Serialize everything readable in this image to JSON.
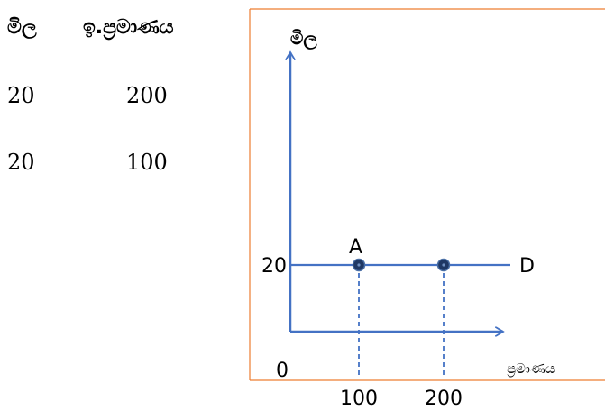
{
  "table": {
    "headers": [
      "මිල",
      "ඉ.ප්‍රමාණය"
    ],
    "rows": [
      [
        "20",
        "200"
      ],
      [
        "20",
        "100"
      ]
    ]
  },
  "chart_data": {
    "type": "line",
    "xlabel": "ප්‍රමාණය",
    "ylabel": "මිල",
    "origin_label": "0",
    "x_ticks": [
      "100",
      "200"
    ],
    "y_ticks": [
      "20"
    ],
    "series": [
      {
        "name": "D",
        "x": [
          100,
          200
        ],
        "y": [
          20,
          20
        ],
        "point_labels": [
          "A",
          ""
        ]
      }
    ],
    "colors": {
      "axis": "#4472c4",
      "line": "#4472c4",
      "point": "#1f3864",
      "frame": "#ed7d31"
    }
  }
}
